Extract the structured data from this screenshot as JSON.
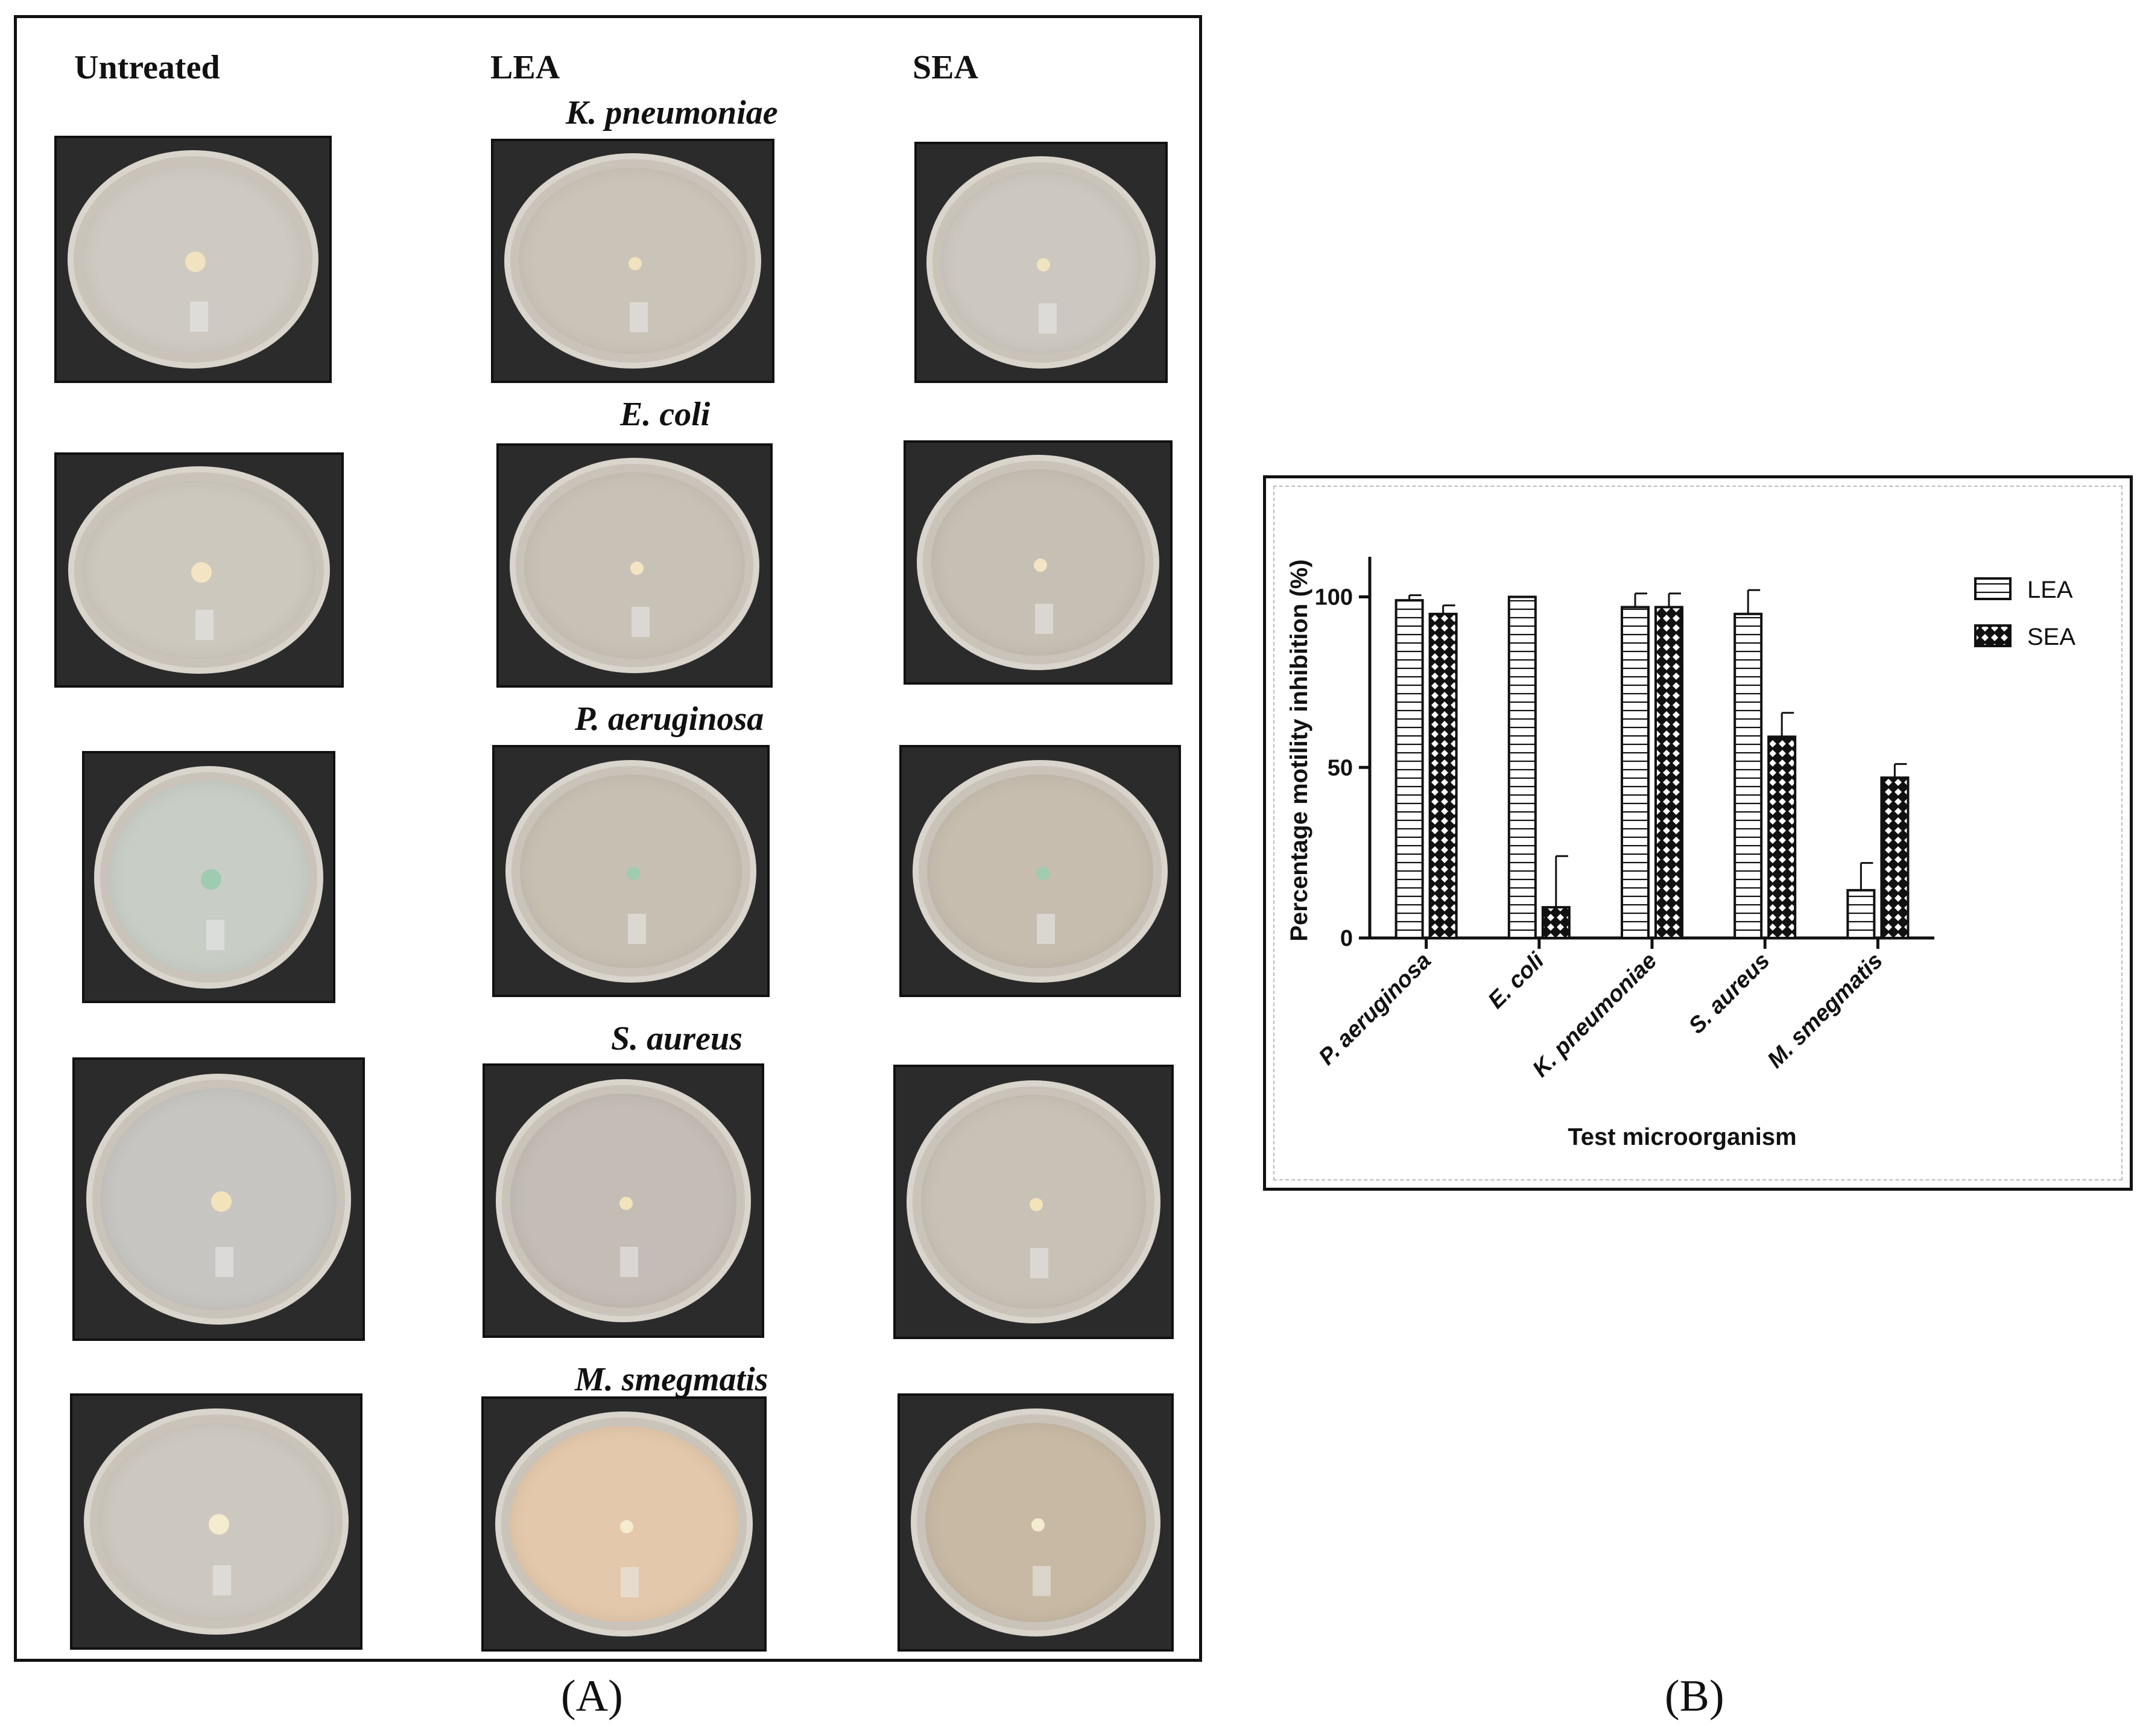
{
  "panel_a": {
    "column_headers": [
      "Untreated",
      "LEA",
      "SEA"
    ],
    "rows": [
      {
        "organism": "K. pneumoniae",
        "colony_color": "#f1e2c0"
      },
      {
        "organism": "E. coli",
        "colony_color": "#f3e5c3"
      },
      {
        "organism": "P. aeruginosa",
        "colony_color": "#9fcbb0"
      },
      {
        "organism": "S. aureus",
        "colony_color": "#f3e3bb"
      },
      {
        "organism": "M. smegmatis",
        "colony_color": "#f5ebcf"
      }
    ],
    "letter": "(A)"
  },
  "panel_b": {
    "letter": "(B)"
  },
  "chart_data": {
    "type": "bar",
    "categories": [
      "P. aeruginosa",
      "E. coli",
      "K. pneumoniae",
      "S. aureus",
      "M. smegmatis"
    ],
    "series": [
      {
        "name": "LEA",
        "pattern": "horizontal-lines",
        "values": [
          99,
          100,
          97,
          95,
          14
        ],
        "errors": [
          1.5,
          0,
          4,
          7,
          8
        ]
      },
      {
        "name": "SEA",
        "pattern": "crosshatch",
        "values": [
          95,
          9,
          97,
          59,
          47
        ],
        "errors": [
          2.5,
          15,
          4,
          7,
          4
        ]
      }
    ],
    "title": "",
    "xlabel": "Test microorganism",
    "ylabel": "Percentage motility inhibition (%)",
    "ylim": [
      0,
      110
    ],
    "yticks": [
      0,
      50,
      100
    ],
    "legend_position": "top-right"
  }
}
